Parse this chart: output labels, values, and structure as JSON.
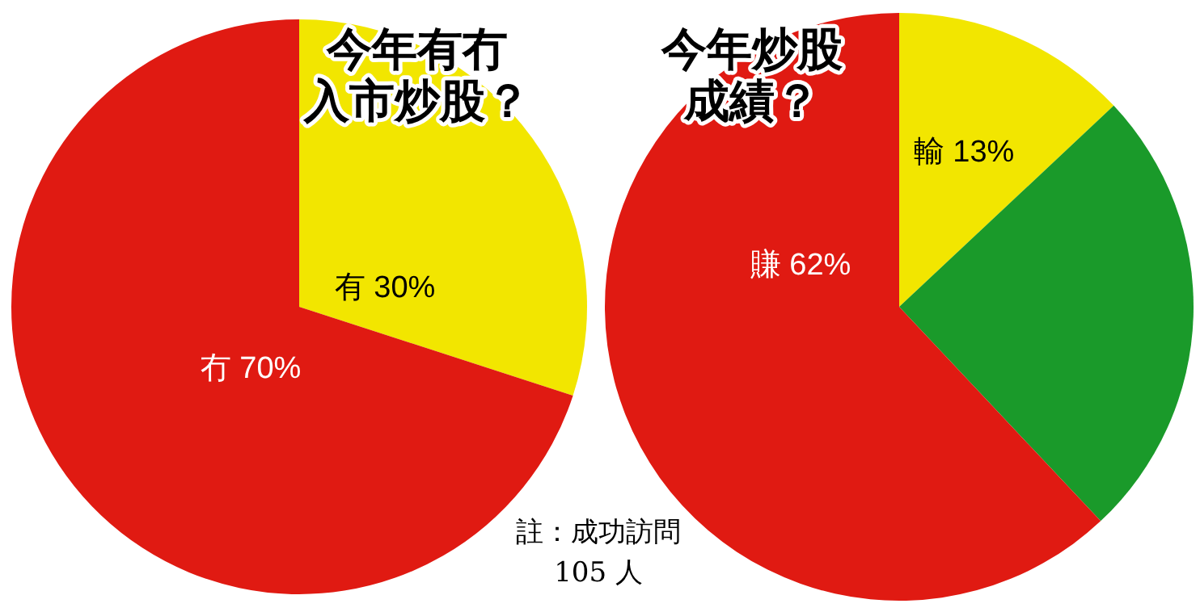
{
  "chart_data": [
    {
      "type": "pie",
      "title": "今年有冇入市炒股？",
      "categories": [
        "有",
        "冇"
      ],
      "values": [
        30,
        70
      ],
      "value_labels": [
        "30%",
        "70%"
      ],
      "colors": [
        "#f2e600",
        "#e01a12"
      ]
    },
    {
      "type": "pie",
      "title": "今年炒股成績？",
      "categories": [
        "輸",
        null,
        "賺"
      ],
      "values": [
        13,
        25,
        62
      ],
      "value_labels": [
        "13%",
        null,
        "62%"
      ],
      "colors": [
        "#f2e600",
        "#1a9a2a",
        "#e01a12"
      ],
      "annotations": [
        "註：成功訪問\n105 人"
      ]
    }
  ]
}
